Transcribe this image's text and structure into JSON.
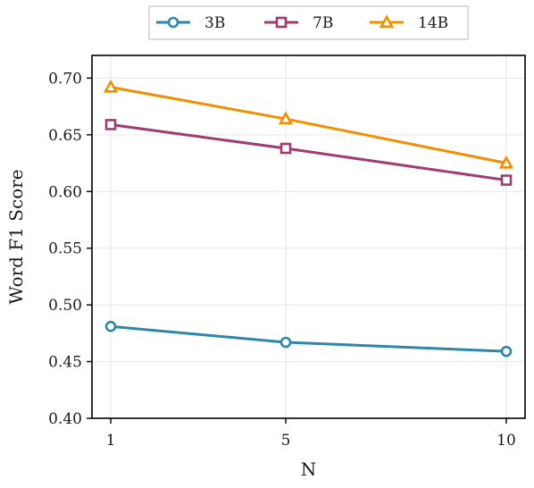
{
  "chart_data": {
    "type": "line",
    "xlabel": "N",
    "ylabel": "Word F1 Score",
    "x": [
      1,
      5,
      10
    ],
    "x_ticks": [
      "1",
      "5",
      "10"
    ],
    "ylim": [
      0.4,
      0.72
    ],
    "y_ticks": [
      "0.40",
      "0.45",
      "0.50",
      "0.55",
      "0.60",
      "0.65",
      "0.70"
    ],
    "grid": true,
    "legend_position": "top-center, outside plot",
    "series": [
      {
        "name": "3B",
        "values": [
          0.481,
          0.467,
          0.459
        ],
        "color": "#2e86ab",
        "marker": "circle"
      },
      {
        "name": "7B",
        "values": [
          0.659,
          0.638,
          0.61
        ],
        "color": "#a23b72",
        "marker": "square"
      },
      {
        "name": "14B",
        "values": [
          0.692,
          0.664,
          0.625
        ],
        "color": "#f18f01",
        "marker": "triangle"
      }
    ]
  }
}
